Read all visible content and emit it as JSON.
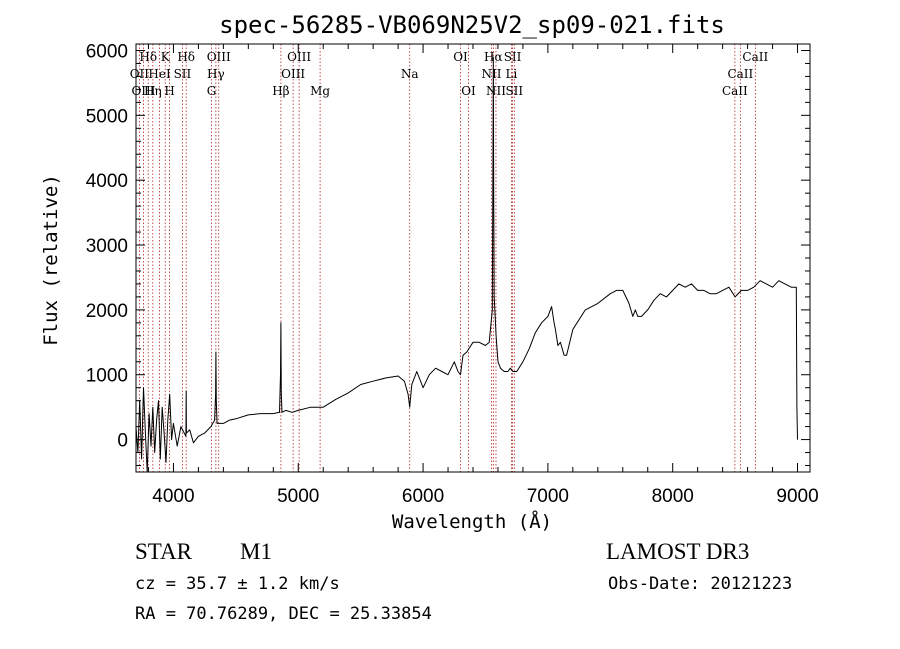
{
  "chart_data": {
    "type": "line",
    "title": "spec-56285-VB069N25V2_sp09-021.fits",
    "xlabel": "Wavelength (Å)",
    "ylabel": "Flux (relative)",
    "xlim": [
      3700,
      9100
    ],
    "ylim": [
      -500,
      6100
    ],
    "xticks": [
      4000,
      5000,
      6000,
      7000,
      8000,
      9000
    ],
    "yticks": [
      0,
      1000,
      2000,
      3000,
      4000,
      5000,
      6000
    ],
    "line_color": "#000000",
    "marker_color": "#b22222",
    "series": [
      {
        "name": "spectrum",
        "x": [
          3700,
          3715,
          3730,
          3745,
          3760,
          3775,
          3790,
          3805,
          3820,
          3835,
          3850,
          3865,
          3880,
          3895,
          3910,
          3925,
          3940,
          3955,
          3970,
          3985,
          4000,
          4030,
          4060,
          4100,
          4102,
          4104,
          4130,
          4160,
          4200,
          4250,
          4300,
          4330,
          4338,
          4340,
          4343,
          4350,
          4400,
          4450,
          4500,
          4600,
          4700,
          4800,
          4850,
          4858,
          4861,
          4864,
          4870,
          4900,
          4950,
          5000,
          5100,
          5200,
          5300,
          5400,
          5500,
          5600,
          5700,
          5800,
          5850,
          5880,
          5893,
          5910,
          5950,
          6000,
          6050,
          6100,
          6150,
          6200,
          6250,
          6280,
          6300,
          6320,
          6350,
          6400,
          6450,
          6500,
          6530,
          6555,
          6560,
          6563,
          6566,
          6570,
          6585,
          6600,
          6620,
          6650,
          6680,
          6700,
          6720,
          6750,
          6800,
          6850,
          6900,
          6950,
          7000,
          7030,
          7050,
          7060,
          7080,
          7100,
          7130,
          7150,
          7200,
          7300,
          7400,
          7500,
          7550,
          7600,
          7650,
          7680,
          7700,
          7720,
          7750,
          7800,
          7850,
          7900,
          7950,
          8000,
          8050,
          8100,
          8150,
          8200,
          8250,
          8300,
          8350,
          8400,
          8450,
          8500,
          8550,
          8600,
          8650,
          8700,
          8750,
          8800,
          8850,
          8900,
          8950,
          8990,
          8995,
          9000
        ],
        "y": [
          200,
          -200,
          600,
          -300,
          800,
          100,
          -500,
          400,
          -100,
          500,
          -200,
          300,
          600,
          -300,
          500,
          100,
          -350,
          300,
          700,
          0,
          250,
          -100,
          200,
          50,
          750,
          100,
          150,
          -50,
          50,
          100,
          200,
          300,
          700,
          1350,
          600,
          250,
          250,
          300,
          320,
          380,
          400,
          400,
          420,
          1000,
          1800,
          700,
          420,
          450,
          420,
          450,
          500,
          500,
          620,
          720,
          850,
          900,
          950,
          980,
          900,
          700,
          500,
          850,
          1050,
          800,
          1000,
          1100,
          1050,
          1000,
          1200,
          1050,
          1000,
          1300,
          1350,
          1500,
          1500,
          1450,
          1500,
          2000,
          4500,
          5900,
          3800,
          2200,
          1600,
          1200,
          1100,
          1050,
          1050,
          1100,
          1050,
          1050,
          1200,
          1400,
          1650,
          1800,
          1900,
          2050,
          1800,
          1700,
          1450,
          1500,
          1300,
          1300,
          1700,
          2000,
          2100,
          2250,
          2300,
          2300,
          2100,
          1900,
          2000,
          1900,
          1900,
          2000,
          2150,
          2250,
          2200,
          2300,
          2400,
          2350,
          2400,
          2300,
          2300,
          2250,
          2250,
          2300,
          2350,
          2200,
          2300,
          2300,
          2350,
          2450,
          2400,
          2350,
          2450,
          2400,
          2350,
          2350,
          500,
          0
        ]
      }
    ],
    "spectral_lines": [
      {
        "label": "Hδ",
        "wavelength": 3798,
        "row": 1
      },
      {
        "label": "OII",
        "wavelength": 3727,
        "row": 2
      },
      {
        "label": "OIII",
        "wavelength": 3760,
        "row": 3
      },
      {
        "label": "K",
        "wavelength": 3934,
        "row": 1
      },
      {
        "label": "HeI",
        "wavelength": 3889,
        "row": 2
      },
      {
        "label": "Hη",
        "wavelength": 3835,
        "row": 3
      },
      {
        "label": "Hδ",
        "wavelength": 4102,
        "row": 1
      },
      {
        "label": "SII",
        "wavelength": 4072,
        "row": 2
      },
      {
        "label": "H",
        "wavelength": 3969,
        "row": 3
      },
      {
        "label": "OIII",
        "wavelength": 4363,
        "row": 1
      },
      {
        "label": "Hγ",
        "wavelength": 4340,
        "row": 2
      },
      {
        "label": "G",
        "wavelength": 4305,
        "row": 3
      },
      {
        "label": "OIII",
        "wavelength": 5007,
        "row": 1
      },
      {
        "label": "OIII",
        "wavelength": 4959,
        "row": 2
      },
      {
        "label": "Hβ",
        "wavelength": 4861,
        "row": 3
      },
      {
        "label": "Mg",
        "wavelength": 5175,
        "row": 3
      },
      {
        "label": "Na",
        "wavelength": 5893,
        "row": 2
      },
      {
        "label": "OI",
        "wavelength": 6300,
        "row": 1
      },
      {
        "label": "OI",
        "wavelength": 6364,
        "row": 3
      },
      {
        "label": "Hα",
        "wavelength": 6563,
        "row": 1
      },
      {
        "label": "SII",
        "wavelength": 6717,
        "row": 1
      },
      {
        "label": "NII",
        "wavelength": 6548,
        "row": 2
      },
      {
        "label": "Li",
        "wavelength": 6708,
        "row": 2
      },
      {
        "label": "NII",
        "wavelength": 6584,
        "row": 3
      },
      {
        "label": "SII",
        "wavelength": 6731,
        "row": 3
      },
      {
        "label": "CaII",
        "wavelength": 8662,
        "row": 1
      },
      {
        "label": "CaII",
        "wavelength": 8542,
        "row": 2
      },
      {
        "label": "CaII",
        "wavelength": 8498,
        "row": 3
      }
    ]
  },
  "info": {
    "object_class": "STAR",
    "subclass": "M1",
    "survey": "LAMOST DR3",
    "redshift": "cz = 35.7 ± 1.2 km/s",
    "obs_date": "Obs-Date: 20121223",
    "coords": "RA =  70.76289, DEC =  25.33854"
  }
}
